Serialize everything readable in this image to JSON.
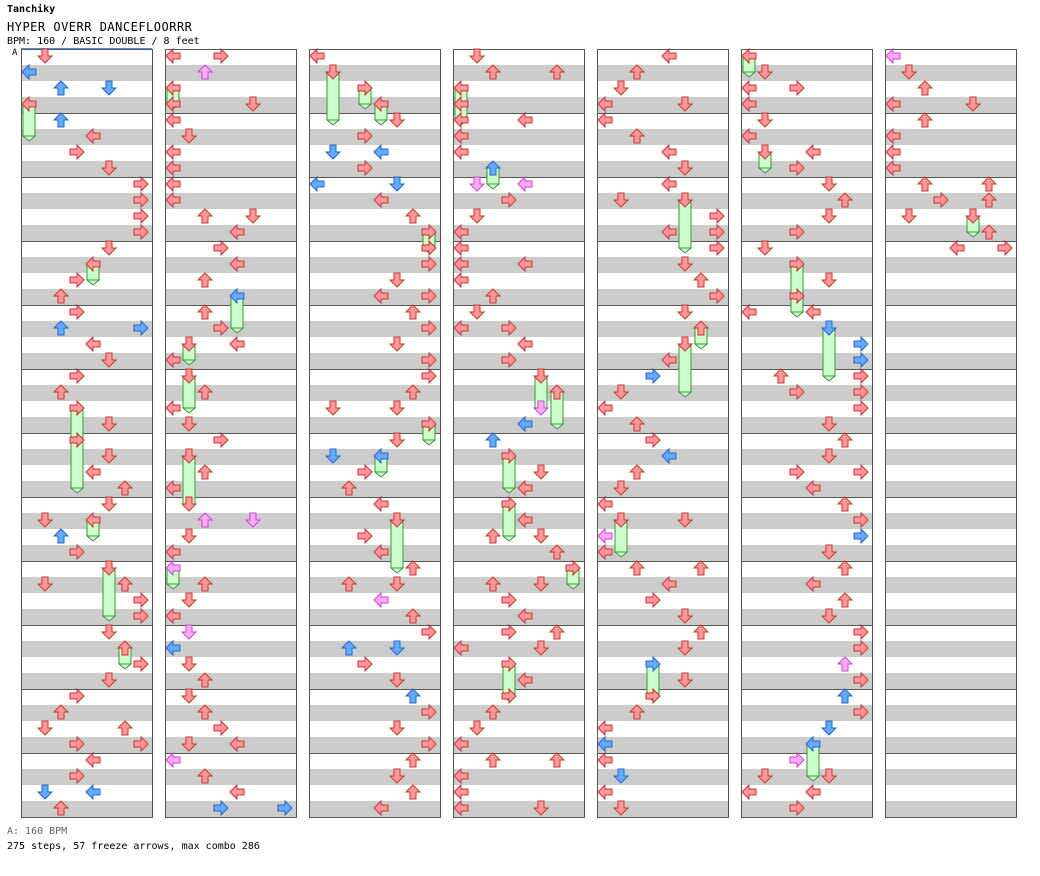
{
  "header": {
    "artist": "Tanchiky",
    "title": "HYPER OVERR DANCEFLOORRR",
    "info": "BPM: 160 / BASIC DOUBLE / 8 feet"
  },
  "segment_label": "A",
  "footer": {
    "bpm_note": "A: 160 BPM",
    "stats": "275 steps, 57 freeze arrows, max combo 286"
  },
  "chart": {
    "columns": 7,
    "measures_per_column": 12,
    "lanes": 8,
    "colors": {
      "quarter": "#ff9999",
      "quarter_stroke": "#cc3333",
      "eighth": "#66aaff",
      "eighth_stroke": "#2266cc",
      "sixteenth": "#ffaaff",
      "freeze": "#ccffcc",
      "freeze_stroke": "#339933",
      "stripe": "#cccccc"
    }
  }
}
